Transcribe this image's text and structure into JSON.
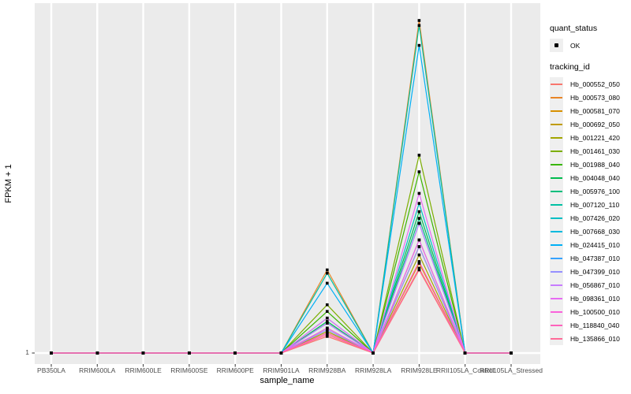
{
  "chart_data": {
    "type": "line",
    "title": "",
    "xlabel": "sample_name",
    "ylabel": "FPKM + 1",
    "y_ticks": [
      "1"
    ],
    "value_encoding": "values are percent of the tallest peak height above the baseline; 0 = the only labeled y tick (FPKM + 1 = 1)",
    "grid": "on",
    "legend_position": "right",
    "categories": [
      "PB350LA",
      "RRIM600LA",
      "RRIM600LE",
      "RRIM600SE",
      "RRIM600PE",
      "RRIM901LA",
      "RRIM928BA",
      "RRIM928LA",
      "RRIM928LE",
      "RRII105LA_Control",
      "RRII105LA_Stressed"
    ],
    "series": [
      {
        "name": "Hb_000552_050",
        "color": "#F8766D",
        "values": [
          0,
          0,
          0,
          0,
          0,
          0,
          5,
          0,
          25,
          0,
          0
        ]
      },
      {
        "name": "Hb_000573_080",
        "color": "#E88526",
        "values": [
          0,
          0,
          0,
          0,
          0,
          0,
          25,
          0,
          100,
          0,
          0
        ]
      },
      {
        "name": "Hb_000581_070",
        "color": "#D89000",
        "values": [
          0,
          0,
          0,
          0,
          0,
          0,
          6,
          0,
          27,
          0,
          0
        ]
      },
      {
        "name": "Hb_000692_050",
        "color": "#C09B00",
        "values": [
          0,
          0,
          0,
          0,
          0,
          0,
          7.5,
          0,
          32,
          0,
          0
        ]
      },
      {
        "name": "Hb_001221_420",
        "color": "#A3A500",
        "values": [
          0,
          0,
          0,
          0,
          0,
          0,
          6.5,
          0,
          29.5,
          0,
          0
        ]
      },
      {
        "name": "Hb_001461_030",
        "color": "#7CAE00",
        "values": [
          0,
          0,
          0,
          0,
          0,
          0,
          14.5,
          0,
          59.5,
          0,
          0
        ]
      },
      {
        "name": "Hb_001988_040",
        "color": "#39B600",
        "values": [
          0,
          0,
          0,
          0,
          0,
          0,
          12.5,
          0,
          54.5,
          0,
          0
        ]
      },
      {
        "name": "Hb_004048_040",
        "color": "#00BB4E",
        "values": [
          0,
          0,
          0,
          0,
          0,
          0,
          9.5,
          0,
          42.5,
          0,
          0
        ]
      },
      {
        "name": "Hb_005976_100",
        "color": "#00BF7D",
        "values": [
          0,
          0,
          0,
          0,
          0,
          0,
          9,
          0,
          40.5,
          0,
          0
        ]
      },
      {
        "name": "Hb_007120_110",
        "color": "#00C1A3",
        "values": [
          0,
          0,
          0,
          0,
          0,
          0,
          24,
          0,
          98.5,
          0,
          0
        ]
      },
      {
        "name": "Hb_007426_020",
        "color": "#00BFC4",
        "values": [
          0,
          0,
          0,
          0,
          0,
          0,
          10.5,
          0,
          45,
          0,
          0
        ]
      },
      {
        "name": "Hb_007668_030",
        "color": "#00BADE",
        "values": [
          0,
          0,
          0,
          0,
          0,
          0,
          9,
          0,
          39,
          0,
          0
        ]
      },
      {
        "name": "Hb_024415_010",
        "color": "#00B0F6",
        "values": [
          0,
          0,
          0,
          0,
          0,
          0,
          21,
          0,
          92.5,
          0,
          0
        ]
      },
      {
        "name": "Hb_047387_010",
        "color": "#35A2FF",
        "values": [
          0,
          0,
          0,
          0,
          0,
          0,
          7.5,
          0,
          34,
          0,
          0
        ]
      },
      {
        "name": "Hb_047399_010",
        "color": "#9590FF",
        "values": [
          0,
          0,
          0,
          0,
          0,
          0,
          7,
          0,
          32,
          0,
          0
        ]
      },
      {
        "name": "Hb_056867_010",
        "color": "#C77CFF",
        "values": [
          0,
          0,
          0,
          0,
          0,
          0,
          9,
          0,
          39,
          0,
          0
        ]
      },
      {
        "name": "Hb_098361_010",
        "color": "#E76BF3",
        "values": [
          0,
          0,
          0,
          0,
          0,
          0,
          10.5,
          0,
          48,
          0,
          0
        ]
      },
      {
        "name": "Hb_100500_010",
        "color": "#FA62DB",
        "values": [
          0,
          0,
          0,
          0,
          0,
          0,
          7.5,
          0,
          34,
          0,
          0
        ]
      },
      {
        "name": "Hb_118840_040",
        "color": "#FF62BC",
        "values": [
          0,
          0,
          0,
          0,
          0,
          0,
          6,
          0,
          27.5,
          0,
          0
        ]
      },
      {
        "name": "Hb_135866_010",
        "color": "#FF6A98",
        "values": [
          0,
          0,
          0,
          0,
          0,
          0,
          5.5,
          0,
          25.5,
          0,
          0
        ]
      }
    ]
  },
  "legend": {
    "quant_status": {
      "title": "quant_status",
      "items": [
        {
          "label": "OK",
          "symbol": "black-square-point"
        }
      ]
    },
    "tracking_id": {
      "title": "tracking_id"
    }
  },
  "colors": {
    "panel_background": "#EBEBEB",
    "gridline": "#FFFFFF",
    "tick_text": "#4D4D4D",
    "point": "#000000",
    "legend_key_background": "#EFEFEF"
  }
}
